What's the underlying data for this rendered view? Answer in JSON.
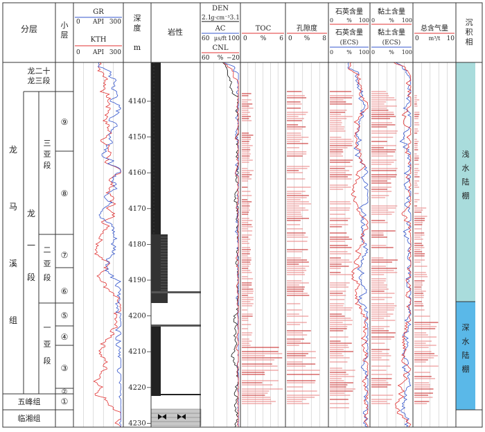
{
  "headers": {
    "fenceng": "分层",
    "xiaoceng": "小层",
    "gr": {
      "name": "GR",
      "min": "0",
      "unit": "API",
      "max": "300"
    },
    "kth": {
      "name": "KTH",
      "min": "0",
      "unit": "API",
      "max": "300"
    },
    "depth": "深度",
    "depth_unit": "m",
    "lithology": "岩性",
    "den": {
      "name": "DEN",
      "min": "2.1",
      "unit": "g·cm⁻³",
      "max": "3.1"
    },
    "ac": {
      "name": "AC",
      "min": "60",
      "unit": "μs/ft",
      "max": "100"
    },
    "cnl": {
      "name": "CNL",
      "min": "60",
      "unit": "%",
      "max": "−20"
    },
    "toc": {
      "name": "TOC",
      "min": "0",
      "unit": "%",
      "max": "6"
    },
    "porosity": {
      "name": "孔隙度",
      "min": "0",
      "unit": "%",
      "max": "8"
    },
    "quartz": {
      "name": "石英含量",
      "min": "0",
      "unit": "%",
      "max": "100"
    },
    "quartz_ecs": {
      "name": "石英含量",
      "sub": "(ECS)",
      "min": "0",
      "unit": "%",
      "max": "100"
    },
    "clay": {
      "name": "黏土含量",
      "min": "0",
      "unit": "%",
      "max": "100"
    },
    "clay_ecs": {
      "name": "黏土含量",
      "sub": "(ECS)",
      "min": "0",
      "unit": "%",
      "max": "100"
    },
    "gas": {
      "name": "总含气量",
      "min": "0",
      "unit": "m³/t",
      "max": "10"
    },
    "facies": "沉积相"
  },
  "formations": {
    "long23": "龙二十龙三段",
    "longmaxi": "龙马溪组",
    "long1": "龙一段",
    "sub3": "三亚段",
    "sub2": "二亚段",
    "sub1": "一亚段",
    "wufeng": "五峰组",
    "linxiang": "临湘组"
  },
  "layers": [
    "⑨",
    "⑧",
    "⑦",
    "⑥",
    "⑤",
    "④",
    "③",
    "②",
    "①"
  ],
  "depth_ticks": [
    "4140",
    "4150",
    "4160",
    "4170",
    "4180",
    "4190",
    "4200",
    "4210",
    "4220",
    "4230"
  ],
  "facies": {
    "shallow": "浅水陆棚",
    "deep": "深水陆棚"
  },
  "colors": {
    "gr": "#e03030",
    "kth": "#3355cc",
    "den": "#111111",
    "ac": "#3355cc",
    "cnl": "#e03030",
    "toc": "#e03030",
    "shallow": "#a9dcdc",
    "deep": "#5ab8e8"
  }
}
